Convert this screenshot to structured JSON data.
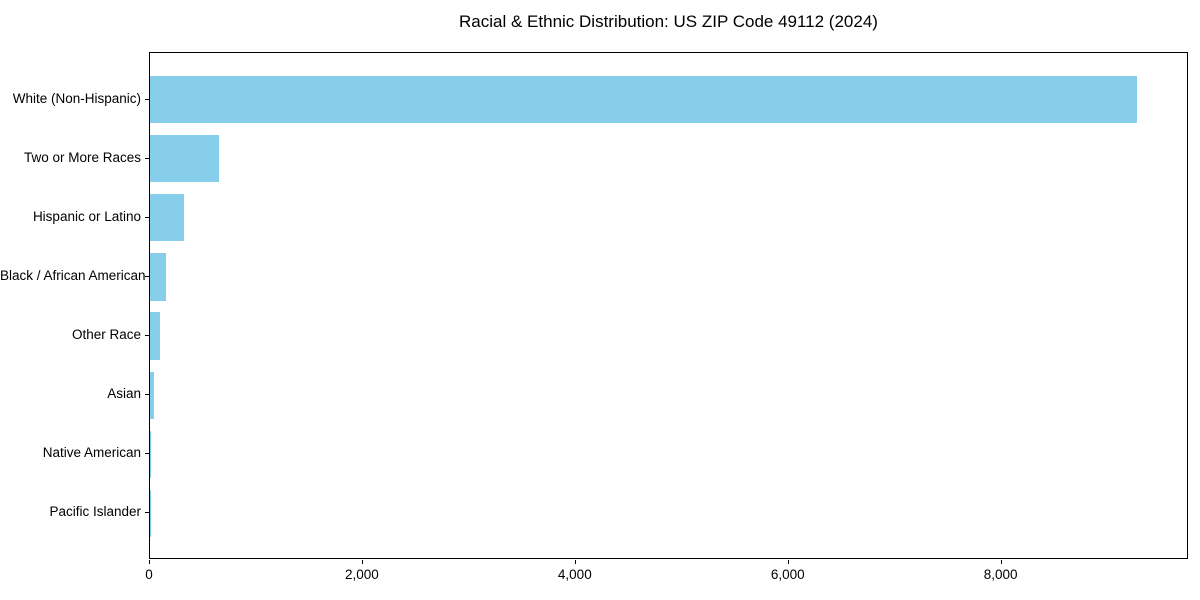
{
  "title": "Racial & Ethnic Distribution: US ZIP Code 49112 (2024)",
  "colors": {
    "bar": "#87CEEB",
    "axis": "#000000",
    "background": "#ffffff",
    "text": "#000000"
  },
  "chart_data": {
    "type": "bar",
    "orientation": "horizontal",
    "title": "Racial & Ethnic Distribution: US ZIP Code 49112 (2024)",
    "xlabel": "",
    "ylabel": "",
    "categories": [
      "White (Non-Hispanic)",
      "Two or More Races",
      "Hispanic or Latino",
      "Black / African American",
      "Other Race",
      "Asian",
      "Native American",
      "Pacific Islander"
    ],
    "values": [
      9268,
      650,
      320,
      150,
      95,
      35,
      10,
      2
    ],
    "xlim": [
      0,
      9760
    ],
    "x_ticks": [
      0,
      2000,
      4000,
      6000,
      8000
    ],
    "x_tick_labels": [
      "0",
      "2,000",
      "4,000",
      "6,000",
      "8,000"
    ],
    "bar_color": "#87CEEB",
    "grid": false,
    "legend": null
  }
}
